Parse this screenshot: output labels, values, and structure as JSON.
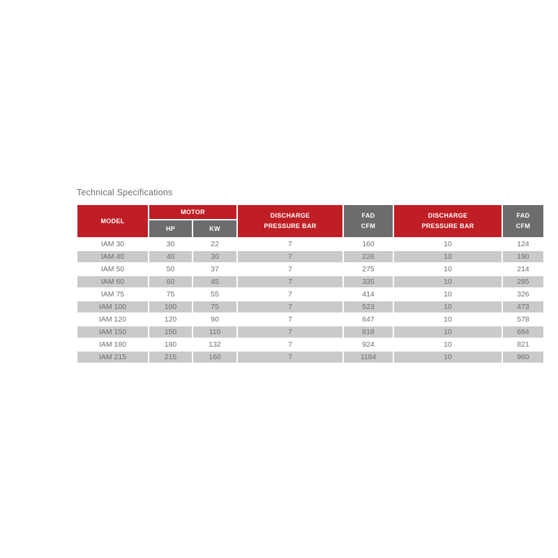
{
  "page": {
    "title": "Technical Specifications"
  },
  "colors": {
    "brand_red": "#bf1e24",
    "header_gray": "#6b6c6e",
    "zebra_gray": "#c9caca",
    "text_gray": "#6d6e70"
  },
  "table": {
    "header": {
      "model": "MODEL",
      "motor": "MOTOR",
      "hp": "HP",
      "kw": "KW",
      "discharge_line1": "DISCHARGE",
      "discharge_line2": "PRESSURE BAR",
      "fad_line1": "FAD",
      "fad_line2": "CFM"
    },
    "row_keys": [
      "model",
      "hp",
      "kw",
      "discharge_bar_1",
      "fad_cfm_1",
      "discharge_bar_2",
      "fad_cfm_2"
    ],
    "rows": [
      {
        "model": "IAM 30",
        "hp": "30",
        "kw": "22",
        "discharge_bar_1": "7",
        "fad_cfm_1": "160",
        "discharge_bar_2": "10",
        "fad_cfm_2": "124"
      },
      {
        "model": "IAM 40",
        "hp": "40",
        "kw": "30",
        "discharge_bar_1": "7",
        "fad_cfm_1": "226",
        "discharge_bar_2": "10",
        "fad_cfm_2": "190"
      },
      {
        "model": "IAM 50",
        "hp": "50",
        "kw": "37",
        "discharge_bar_1": "7",
        "fad_cfm_1": "275",
        "discharge_bar_2": "10",
        "fad_cfm_2": "214"
      },
      {
        "model": "IAM 60",
        "hp": "60",
        "kw": "45",
        "discharge_bar_1": "7",
        "fad_cfm_1": "335",
        "discharge_bar_2": "10",
        "fad_cfm_2": "285"
      },
      {
        "model": "IAM 75",
        "hp": "75",
        "kw": "55",
        "discharge_bar_1": "7",
        "fad_cfm_1": "414",
        "discharge_bar_2": "10",
        "fad_cfm_2": "326"
      },
      {
        "model": "IAM 100",
        "hp": "100",
        "kw": "75",
        "discharge_bar_1": "7",
        "fad_cfm_1": "523",
        "discharge_bar_2": "10",
        "fad_cfm_2": "473"
      },
      {
        "model": "IAM 120",
        "hp": "120",
        "kw": "90",
        "discharge_bar_1": "7",
        "fad_cfm_1": "647",
        "discharge_bar_2": "10",
        "fad_cfm_2": "578"
      },
      {
        "model": "IAM 150",
        "hp": "150",
        "kw": "110",
        "discharge_bar_1": "7",
        "fad_cfm_1": "818",
        "discharge_bar_2": "10",
        "fad_cfm_2": "684"
      },
      {
        "model": "IAM 180",
        "hp": "180",
        "kw": "132",
        "discharge_bar_1": "7",
        "fad_cfm_1": "924",
        "discharge_bar_2": "10",
        "fad_cfm_2": "821"
      },
      {
        "model": "IAM 215",
        "hp": "215",
        "kw": "160",
        "discharge_bar_1": "7",
        "fad_cfm_1": "1184",
        "discharge_bar_2": "10",
        "fad_cfm_2": "960"
      }
    ]
  }
}
